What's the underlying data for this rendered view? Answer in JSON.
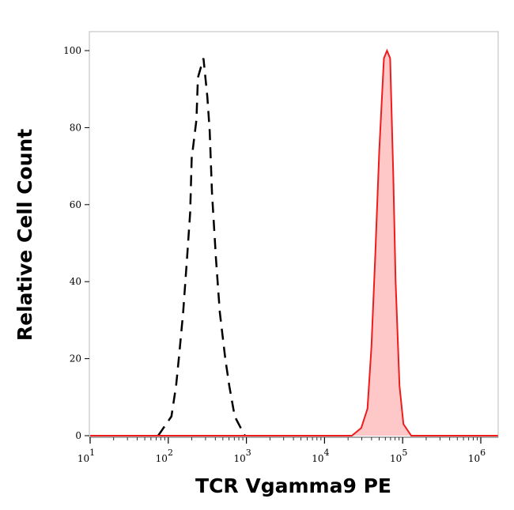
{
  "chart_data": {
    "type": "area",
    "title": "",
    "xlabel": "TCR Vgamma9 PE",
    "ylabel": "Relative Cell Count",
    "x_scale": "log",
    "xlim_log10": [
      1,
      6.22
    ],
    "ylim": [
      0,
      100
    ],
    "grid": false,
    "x_ticks": [
      {
        "base": "10",
        "exp": "1",
        "log": 1
      },
      {
        "base": "10",
        "exp": "2",
        "log": 2
      },
      {
        "base": "10",
        "exp": "3",
        "log": 3
      },
      {
        "base": "10",
        "exp": "4",
        "log": 4
      },
      {
        "base": "10",
        "exp": "5",
        "log": 5
      },
      {
        "base": "10",
        "exp": "6",
        "log": 6
      }
    ],
    "y_ticks": [
      0,
      20,
      40,
      60,
      80,
      100
    ],
    "series": [
      {
        "style": "dashed-line",
        "color": "#000000",
        "log10_x": [
          1.87,
          2.04,
          2.1,
          2.14,
          2.19,
          2.24,
          2.28,
          2.3,
          2.36,
          2.38,
          2.45,
          2.5,
          2.53,
          2.56,
          2.61,
          2.66,
          2.73,
          2.78,
          2.85,
          2.98
        ],
        "y": [
          0,
          5,
          13,
          21,
          32,
          46,
          58,
          72,
          82,
          93,
          98,
          88,
          79,
          63,
          46,
          32,
          20,
          13,
          5,
          0
        ]
      },
      {
        "style": "filled",
        "color": "#ee1c1c",
        "fill": "#ffc8c8",
        "log10_x": [
          1.0,
          4.35,
          4.47,
          4.55,
          4.6,
          4.65,
          4.7,
          4.76,
          4.8,
          4.84,
          4.88,
          4.91,
          4.96,
          5.01,
          5.11,
          6.22
        ],
        "y": [
          0,
          0,
          2,
          7,
          23,
          47,
          74,
          98,
          100,
          98,
          68,
          40,
          13,
          3,
          0,
          0
        ]
      }
    ]
  }
}
